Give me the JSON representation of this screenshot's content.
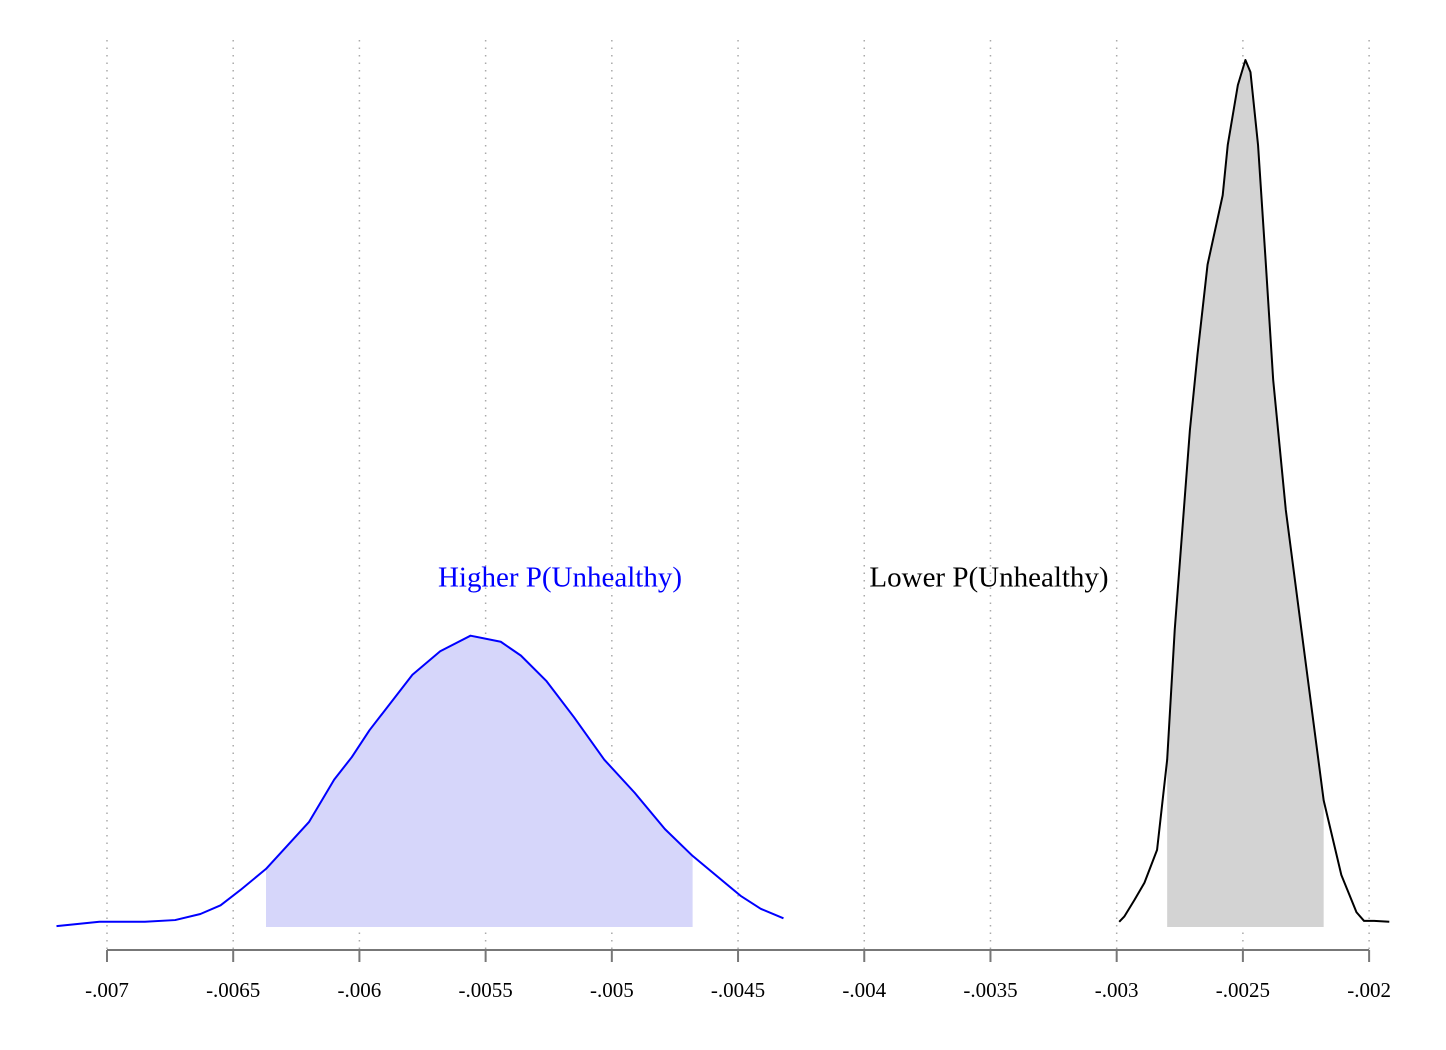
{
  "chart_data": {
    "type": "density",
    "xlim": [
      -0.0072,
      -0.00192
    ],
    "ylim": [
      0,
      1
    ],
    "xticks": [
      {
        "value": -0.007,
        "label": "-.007"
      },
      {
        "value": -0.0065,
        "label": "-.0065"
      },
      {
        "value": -0.006,
        "label": "-.006"
      },
      {
        "value": -0.0055,
        "label": "-.0055"
      },
      {
        "value": -0.005,
        "label": "-.005"
      },
      {
        "value": -0.0045,
        "label": "-.0045"
      },
      {
        "value": -0.004,
        "label": "-.004"
      },
      {
        "value": -0.0035,
        "label": "-.0035"
      },
      {
        "value": -0.003,
        "label": "-.003"
      },
      {
        "value": -0.0025,
        "label": "-.0025"
      },
      {
        "value": -0.002,
        "label": "-.002"
      }
    ],
    "grid": true,
    "series": [
      {
        "name": "Higher P(Unhealthy)",
        "color": "#0000ff",
        "fill": "#d6d6fa",
        "interval": [
          -0.00637,
          -0.00468
        ],
        "x": [
          -0.0072,
          -0.00703,
          -0.00685,
          -0.00673,
          -0.00663,
          -0.00655,
          -0.00647,
          -0.00637,
          -0.0062,
          -0.0061,
          -0.00603,
          -0.00596,
          -0.00579,
          -0.00568,
          -0.00556,
          -0.00544,
          -0.00536,
          -0.00526,
          -0.00515,
          -0.00503,
          -0.00491,
          -0.00479,
          -0.00468,
          -0.00449,
          -0.00441,
          -0.00432
        ],
        "values": [
          0.001,
          0.006,
          0.006,
          0.008,
          0.015,
          0.025,
          0.043,
          0.067,
          0.121,
          0.17,
          0.196,
          0.227,
          0.291,
          0.318,
          0.336,
          0.329,
          0.313,
          0.284,
          0.242,
          0.193,
          0.155,
          0.113,
          0.082,
          0.036,
          0.021,
          0.01
        ]
      },
      {
        "name": "Lower P(Unhealthy)",
        "color": "#000000",
        "fill": "#d3d3d3",
        "interval": [
          -0.0028,
          -0.00218
        ],
        "x": [
          -0.00299,
          -0.00297,
          -0.00293,
          -0.00289,
          -0.00284,
          -0.0028,
          -0.00277,
          -0.00271,
          -0.00268,
          -0.00264,
          -0.00258,
          -0.00256,
          -0.00252,
          -0.00249,
          -0.00247,
          -0.00244,
          -0.00241,
          -0.00238,
          -0.00233,
          -0.00225,
          -0.00218,
          -0.00211,
          -0.00205,
          -0.00202,
          -0.00198,
          -0.00192
        ],
        "values": [
          0.006,
          0.012,
          0.031,
          0.051,
          0.089,
          0.193,
          0.343,
          0.573,
          0.66,
          0.764,
          0.844,
          0.902,
          0.971,
          1,
          0.986,
          0.902,
          0.769,
          0.631,
          0.481,
          0.302,
          0.146,
          0.06,
          0.017,
          0.007,
          0.007,
          0.006
        ]
      }
    ]
  }
}
